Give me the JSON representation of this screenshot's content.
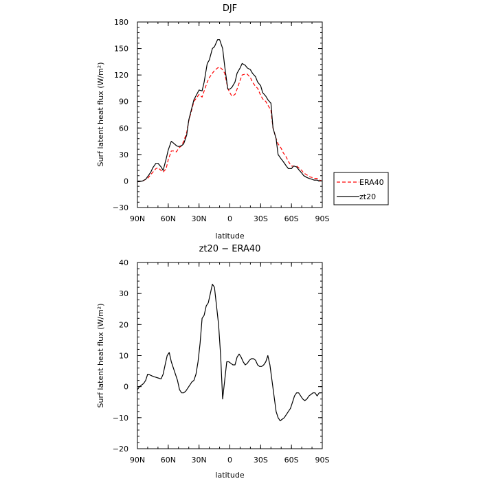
{
  "chart_data": [
    {
      "type": "line",
      "title": "DJF",
      "xlabel": "latitude",
      "ylabel": "Surf latent heat flux (W/m²)",
      "xlim": [
        90,
        -90
      ],
      "ylim": [
        -30,
        180
      ],
      "x_ticks": [
        90,
        60,
        30,
        0,
        -30,
        -60,
        -90
      ],
      "x_tick_labels": [
        "90N",
        "60N",
        "30N",
        "0",
        "30S",
        "60S",
        "90S"
      ],
      "y_ticks": [
        -30,
        0,
        30,
        60,
        90,
        120,
        150,
        180
      ],
      "y_tick_labels": [
        "−30",
        "0",
        "30",
        "60",
        "90",
        "120",
        "150",
        "180"
      ],
      "legend_position": "outside-right-bottom",
      "series": [
        {
          "name": "ERA40",
          "color": "#ff0000",
          "dash": "dashed",
          "x": [
            90,
            85,
            80,
            75,
            72,
            70,
            67,
            65,
            62,
            60,
            57,
            55,
            52,
            50,
            47,
            45,
            42,
            40,
            35,
            30,
            27,
            25,
            22,
            20,
            17,
            15,
            12,
            10,
            7,
            5,
            2,
            0,
            -2,
            -5,
            -7,
            -10,
            -12,
            -15,
            -17,
            -20,
            -22,
            -25,
            -27,
            -30,
            -32,
            -35,
            -37,
            -40,
            -42,
            -45,
            -47,
            -50,
            -52,
            -55,
            -57,
            -60,
            -62,
            -65,
            -67,
            -70,
            -72,
            -75,
            -77,
            -80,
            -82,
            -85,
            -87,
            -90
          ],
          "y": [
            -1,
            0,
            3,
            10,
            14,
            15,
            12,
            10,
            14,
            24,
            34,
            34,
            33,
            37,
            40,
            45,
            55,
            68,
            90,
            98,
            95,
            102,
            112,
            117,
            122,
            125,
            128,
            129,
            126,
            122,
            105,
            100,
            96,
            98,
            104,
            114,
            120,
            121,
            121,
            117,
            112,
            107,
            105,
            97,
            93,
            90,
            86,
            80,
            60,
            48,
            42,
            37,
            32,
            27,
            22,
            17,
            17,
            17,
            15,
            12,
            9,
            7,
            5,
            4,
            3,
            3,
            1,
            0
          ]
        },
        {
          "name": "zt20",
          "color": "#000000",
          "dash": "solid",
          "x": [
            90,
            85,
            82,
            80,
            77,
            75,
            72,
            70,
            67,
            65,
            62,
            60,
            57,
            55,
            52,
            50,
            47,
            45,
            42,
            40,
            35,
            30,
            27,
            25,
            22,
            20,
            17,
            15,
            12,
            10,
            7,
            5,
            2,
            0,
            -2,
            -5,
            -7,
            -10,
            -12,
            -15,
            -17,
            -20,
            -22,
            -25,
            -27,
            -30,
            -32,
            -35,
            -37,
            -40,
            -42,
            -45,
            -47,
            -50,
            -52,
            -55,
            -57,
            -60,
            -62,
            -65,
            -67,
            -70,
            -72,
            -75,
            -77,
            -80,
            -82,
            -85,
            -87,
            -90
          ],
          "y": [
            -1,
            0,
            2,
            5,
            10,
            15,
            20,
            20,
            16,
            12,
            25,
            35,
            45,
            43,
            40,
            39,
            40,
            42,
            52,
            69,
            92,
            103,
            102,
            112,
            133,
            137,
            150,
            152,
            160,
            160,
            150,
            130,
            104,
            104,
            106,
            112,
            122,
            128,
            133,
            131,
            128,
            126,
            122,
            118,
            112,
            108,
            100,
            96,
            92,
            88,
            60,
            48,
            30,
            25,
            22,
            17,
            14,
            14,
            17,
            16,
            13,
            9,
            6,
            4,
            3,
            2,
            1,
            1,
            0,
            0
          ]
        }
      ]
    },
    {
      "type": "line",
      "title": "zt20 − ERA40",
      "xlabel": "latitude",
      "ylabel": "Surf latent heat flux (W/m²)",
      "xlim": [
        90,
        -90
      ],
      "ylim": [
        -20,
        40
      ],
      "x_ticks": [
        90,
        60,
        30,
        0,
        -30,
        -60,
        -90
      ],
      "x_tick_labels": [
        "90N",
        "60N",
        "30N",
        "0",
        "30S",
        "60S",
        "90S"
      ],
      "y_ticks": [
        -20,
        -10,
        0,
        10,
        20,
        30,
        40
      ],
      "y_tick_labels": [
        "−20",
        "−10",
        "0",
        "10",
        "20",
        "30",
        "40"
      ],
      "series": [
        {
          "color": "#000000",
          "dash": "solid",
          "x": [
            90,
            88,
            86,
            84,
            82,
            80,
            78,
            76,
            74,
            72,
            70,
            67,
            65,
            63,
            61,
            59,
            57,
            55,
            53,
            51,
            49,
            47,
            45,
            43,
            41,
            39,
            37,
            35,
            33,
            31,
            29,
            27,
            25,
            23,
            21,
            19,
            17,
            15,
            13,
            11,
            9,
            7,
            5,
            3,
            1,
            -1,
            -3,
            -5,
            -7,
            -9,
            -11,
            -13,
            -15,
            -17,
            -19,
            -21,
            -23,
            -25,
            -27,
            -29,
            -31,
            -33,
            -35,
            -37,
            -39,
            -41,
            -43,
            -45,
            -47,
            -49,
            -51,
            -53,
            -55,
            -57,
            -59,
            -61,
            -63,
            -65,
            -67,
            -69,
            -71,
            -73,
            -75,
            -77,
            -79,
            -81,
            -83,
            -85,
            -87,
            -89
          ],
          "y": [
            -1,
            0,
            0.5,
            1,
            2,
            4,
            3.8,
            3.5,
            3.2,
            3,
            2.8,
            2.5,
            4,
            7,
            10,
            11,
            8,
            6,
            4,
            2,
            -1,
            -2,
            -2,
            -1.5,
            -0.5,
            0.5,
            1.5,
            2,
            4,
            8,
            14,
            22,
            23,
            26,
            27,
            30,
            33,
            32,
            26,
            20,
            10,
            -4,
            2,
            8,
            8,
            7.5,
            7,
            7,
            9.5,
            10.5,
            9.5,
            8,
            7,
            7.5,
            8.5,
            9,
            9,
            8.5,
            7,
            6.5,
            6.5,
            7,
            8,
            10,
            7,
            2,
            -3,
            -8,
            -10,
            -11,
            -10.5,
            -10,
            -9,
            -8,
            -7,
            -5,
            -3,
            -2,
            -2,
            -3,
            -4,
            -4.5,
            -4,
            -3,
            -2.5,
            -2,
            -2,
            -3,
            -2,
            -2
          ]
        }
      ]
    }
  ]
}
